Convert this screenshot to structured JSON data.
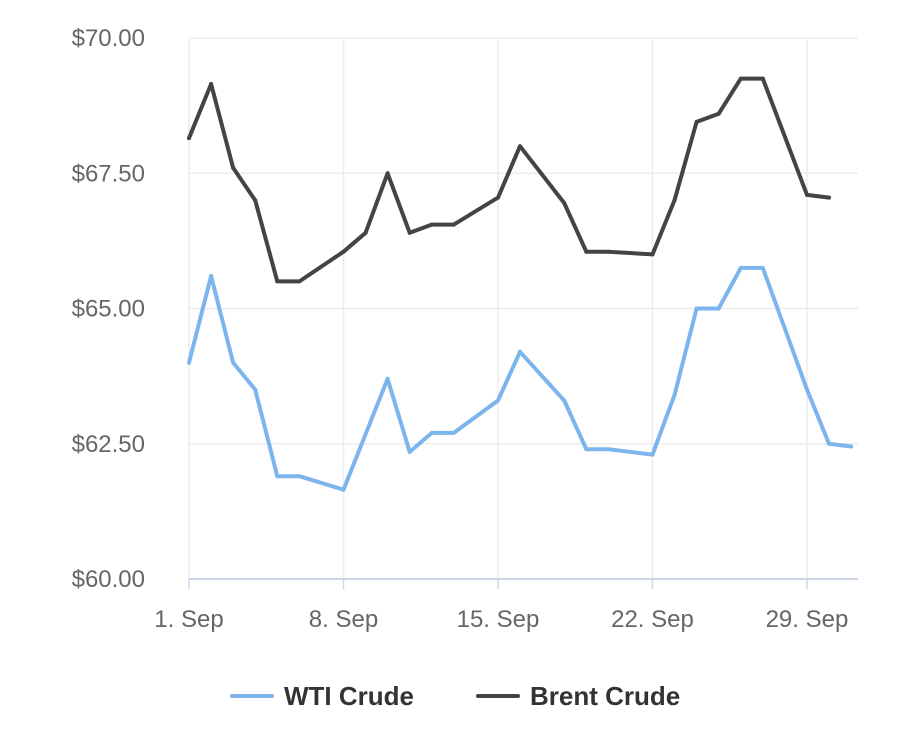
{
  "chart_data": {
    "type": "line",
    "title": "",
    "xlabel": "",
    "ylabel": "",
    "x_ticks": [
      {
        "label": "1. Sep",
        "day": 1
      },
      {
        "label": "8. Sep",
        "day": 8
      },
      {
        "label": "15. Sep",
        "day": 15
      },
      {
        "label": "22. Sep",
        "day": 22
      },
      {
        "label": "29. Sep",
        "day": 29
      }
    ],
    "xlim": [
      1,
      31
    ],
    "ylim": [
      60,
      70
    ],
    "y_ticks": [
      {
        "label": "$60.00",
        "value": 60
      },
      {
        "label": "$62.50",
        "value": 62.5
      },
      {
        "label": "$65.00",
        "value": 65
      },
      {
        "label": "$67.50",
        "value": 67.5
      },
      {
        "label": "$70.00",
        "value": 70
      }
    ],
    "grid": true,
    "legend_position": "bottom-center",
    "series": [
      {
        "name": "WTI Crude",
        "color": "#7cb5ec",
        "points": [
          {
            "day": 1,
            "value": 64.0
          },
          {
            "day": 2,
            "value": 65.6
          },
          {
            "day": 3,
            "value": 64.0
          },
          {
            "day": 4,
            "value": 63.5
          },
          {
            "day": 5,
            "value": 61.9
          },
          {
            "day": 6,
            "value": 61.9
          },
          {
            "day": 8,
            "value": 61.65
          },
          {
            "day": 10,
            "value": 63.7
          },
          {
            "day": 11,
            "value": 62.35
          },
          {
            "day": 12,
            "value": 62.7
          },
          {
            "day": 13,
            "value": 62.7
          },
          {
            "day": 15,
            "value": 63.3
          },
          {
            "day": 16,
            "value": 64.2
          },
          {
            "day": 18,
            "value": 63.3
          },
          {
            "day": 19,
            "value": 62.4
          },
          {
            "day": 20,
            "value": 62.4
          },
          {
            "day": 22,
            "value": 62.3
          },
          {
            "day": 23,
            "value": 63.4
          },
          {
            "day": 24,
            "value": 65.0
          },
          {
            "day": 25,
            "value": 65.0
          },
          {
            "day": 26,
            "value": 65.75
          },
          {
            "day": 27,
            "value": 65.75
          },
          {
            "day": 29,
            "value": 63.5
          },
          {
            "day": 30,
            "value": 62.5
          },
          {
            "day": 31,
            "value": 62.45
          }
        ]
      },
      {
        "name": "Brent Crude",
        "color": "#434348",
        "points": [
          {
            "day": 1,
            "value": 68.15
          },
          {
            "day": 2,
            "value": 69.15
          },
          {
            "day": 3,
            "value": 67.6
          },
          {
            "day": 4,
            "value": 67.0
          },
          {
            "day": 5,
            "value": 65.5
          },
          {
            "day": 6,
            "value": 65.5
          },
          {
            "day": 8,
            "value": 66.05
          },
          {
            "day": 9,
            "value": 66.4
          },
          {
            "day": 10,
            "value": 67.5
          },
          {
            "day": 11,
            "value": 66.4
          },
          {
            "day": 12,
            "value": 66.55
          },
          {
            "day": 13,
            "value": 66.55
          },
          {
            "day": 15,
            "value": 67.05
          },
          {
            "day": 16,
            "value": 68.0
          },
          {
            "day": 18,
            "value": 66.95
          },
          {
            "day": 19,
            "value": 66.05
          },
          {
            "day": 20,
            "value": 66.05
          },
          {
            "day": 22,
            "value": 66.0
          },
          {
            "day": 23,
            "value": 67.0
          },
          {
            "day": 24,
            "value": 68.45
          },
          {
            "day": 25,
            "value": 68.6
          },
          {
            "day": 26,
            "value": 69.25
          },
          {
            "day": 27,
            "value": 69.25
          },
          {
            "day": 29,
            "value": 67.1
          },
          {
            "day": 30,
            "value": 67.05
          }
        ]
      }
    ]
  }
}
